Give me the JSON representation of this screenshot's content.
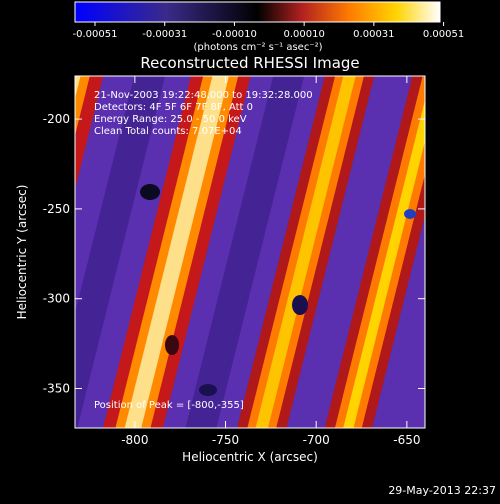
{
  "colorbar": {
    "tick_labels": [
      "-0.00051",
      "-0.00031",
      "-0.00010",
      "0.00010",
      "0.00031",
      "0.00051"
    ],
    "units": "(photons cm⁻² s⁻¹ asec⁻²)",
    "colors": [
      "#0000ff",
      "#3a2a8a",
      "#000000",
      "#b02020",
      "#ff7a00",
      "#ffd400",
      "#ffffff"
    ]
  },
  "title": "Reconstructed RHESSI Image",
  "info": {
    "line1": "21-Nov-2003 19:22:48.000 to 19:32:28.000",
    "line2": "Detectors: 4F 5F 6F 7F 8F, Att 0",
    "line3": "Energy Range: 25.0 - 50.0 keV",
    "line4": "Clean     Total counts: 7.07E+04"
  },
  "peak_label": "Position of Peak = [-800,-355]",
  "axes": {
    "xlabel": "Heliocentric X (arcsec)",
    "ylabel": "Heliocentric Y (arcsec)",
    "xticks": [
      "-800",
      "-750",
      "-700",
      "-650"
    ],
    "yticks": [
      "-200",
      "-250",
      "-300",
      "-350"
    ],
    "xlim": [
      -833,
      -640
    ],
    "ylim": [
      -372,
      -176
    ]
  },
  "footer_timestamp": "29-May-2013 22:37"
}
